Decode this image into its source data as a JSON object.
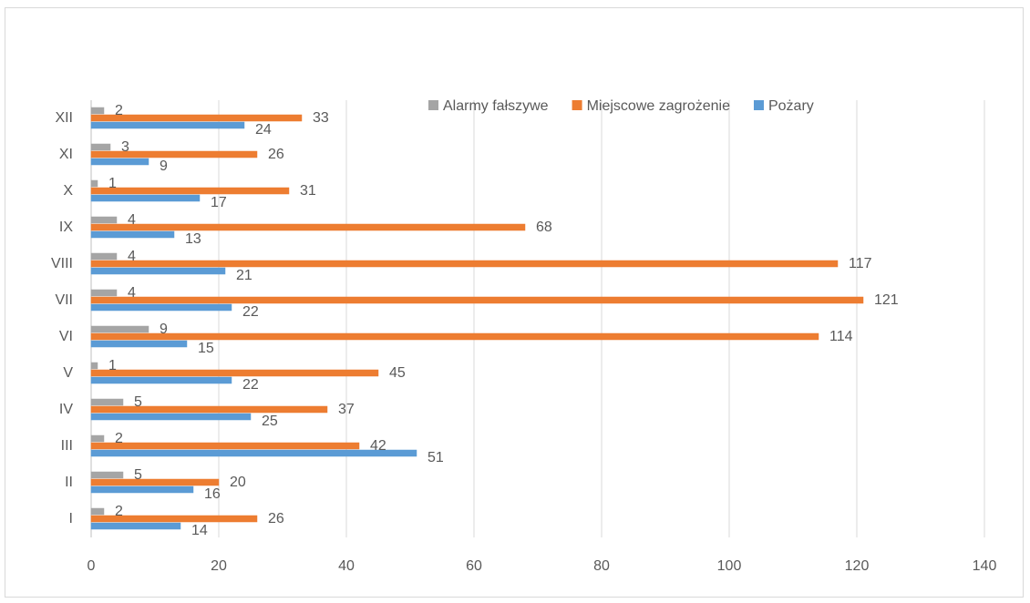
{
  "chart_data": {
    "type": "bar",
    "orientation": "horizontal",
    "categories": [
      "I",
      "II",
      "III",
      "IV",
      "V",
      "VI",
      "VII",
      "VIII",
      "IX",
      "X",
      "XI",
      "XII"
    ],
    "series": [
      {
        "name": "Pożary",
        "color": "#5b9bd5",
        "values": [
          14,
          16,
          51,
          25,
          22,
          15,
          22,
          21,
          13,
          17,
          9,
          24
        ]
      },
      {
        "name": "Miejscowe zagrożenie",
        "color": "#ed7d31",
        "values": [
          26,
          20,
          42,
          37,
          45,
          114,
          121,
          117,
          68,
          31,
          26,
          33
        ]
      },
      {
        "name": "Alarmy fałszywe",
        "color": "#a5a5a5",
        "values": [
          2,
          5,
          2,
          5,
          1,
          9,
          4,
          4,
          4,
          1,
          3,
          2
        ]
      }
    ],
    "xlim": [
      0,
      140
    ],
    "xticks": [
      0,
      20,
      40,
      60,
      80,
      100,
      120,
      140
    ],
    "grid": true,
    "legend": "top-right"
  }
}
